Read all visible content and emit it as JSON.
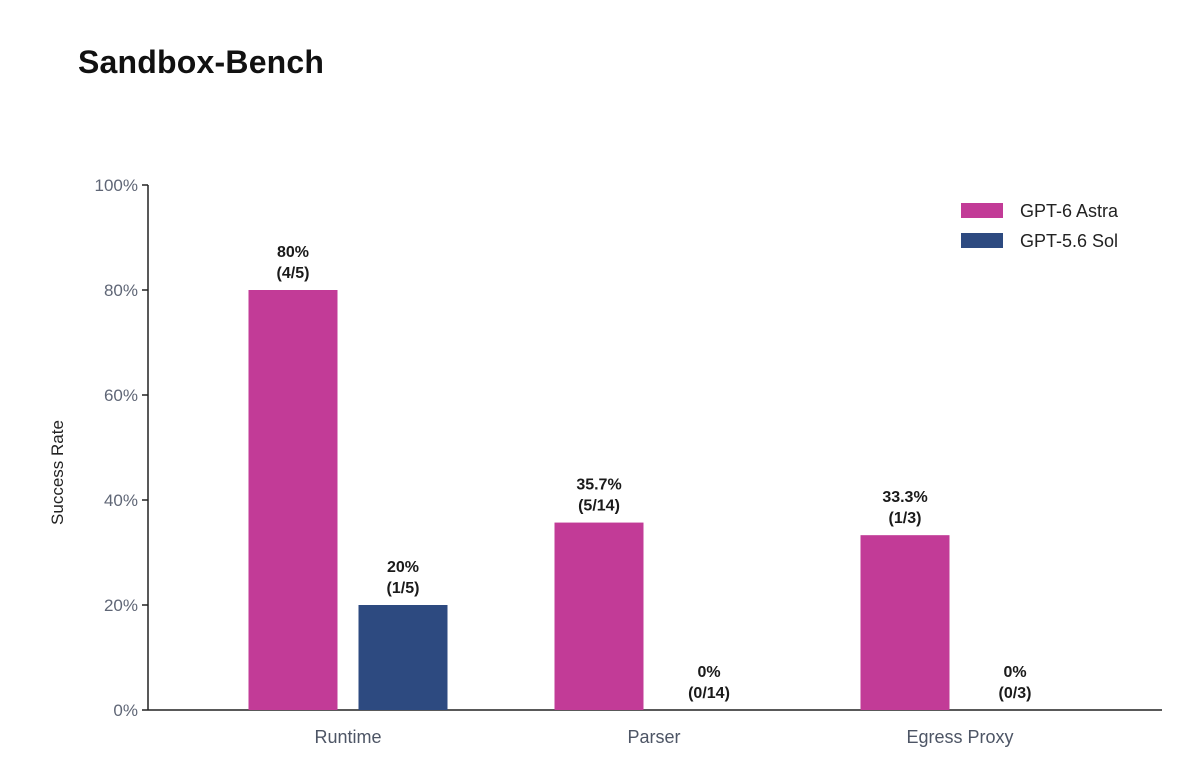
{
  "title": "Sandbox-Bench",
  "chart_data": {
    "type": "bar",
    "title": "Sandbox-Bench",
    "xlabel": "",
    "ylabel": "Success Rate",
    "ylim": [
      0,
      100
    ],
    "yticks": [
      "0%",
      "20%",
      "40%",
      "60%",
      "80%",
      "100%"
    ],
    "categories": [
      "Runtime",
      "Parser",
      "Egress Proxy"
    ],
    "grid": false,
    "legend_position": "top-right",
    "series": [
      {
        "name": "GPT-6 Astra",
        "color": "#c23b97",
        "values": [
          80,
          35.7,
          33.3
        ],
        "labels": [
          [
            "80%",
            "(4/5)"
          ],
          [
            "35.7%",
            "(5/14)"
          ],
          [
            "33.3%",
            "(1/3)"
          ]
        ]
      },
      {
        "name": "GPT-5.6 Sol",
        "color": "#2d4a80",
        "values": [
          20,
          0,
          0
        ],
        "labels": [
          [
            "20%",
            "(1/5)"
          ],
          [
            "0%",
            "(0/14)"
          ],
          [
            "0%",
            "(0/3)"
          ]
        ]
      }
    ]
  }
}
